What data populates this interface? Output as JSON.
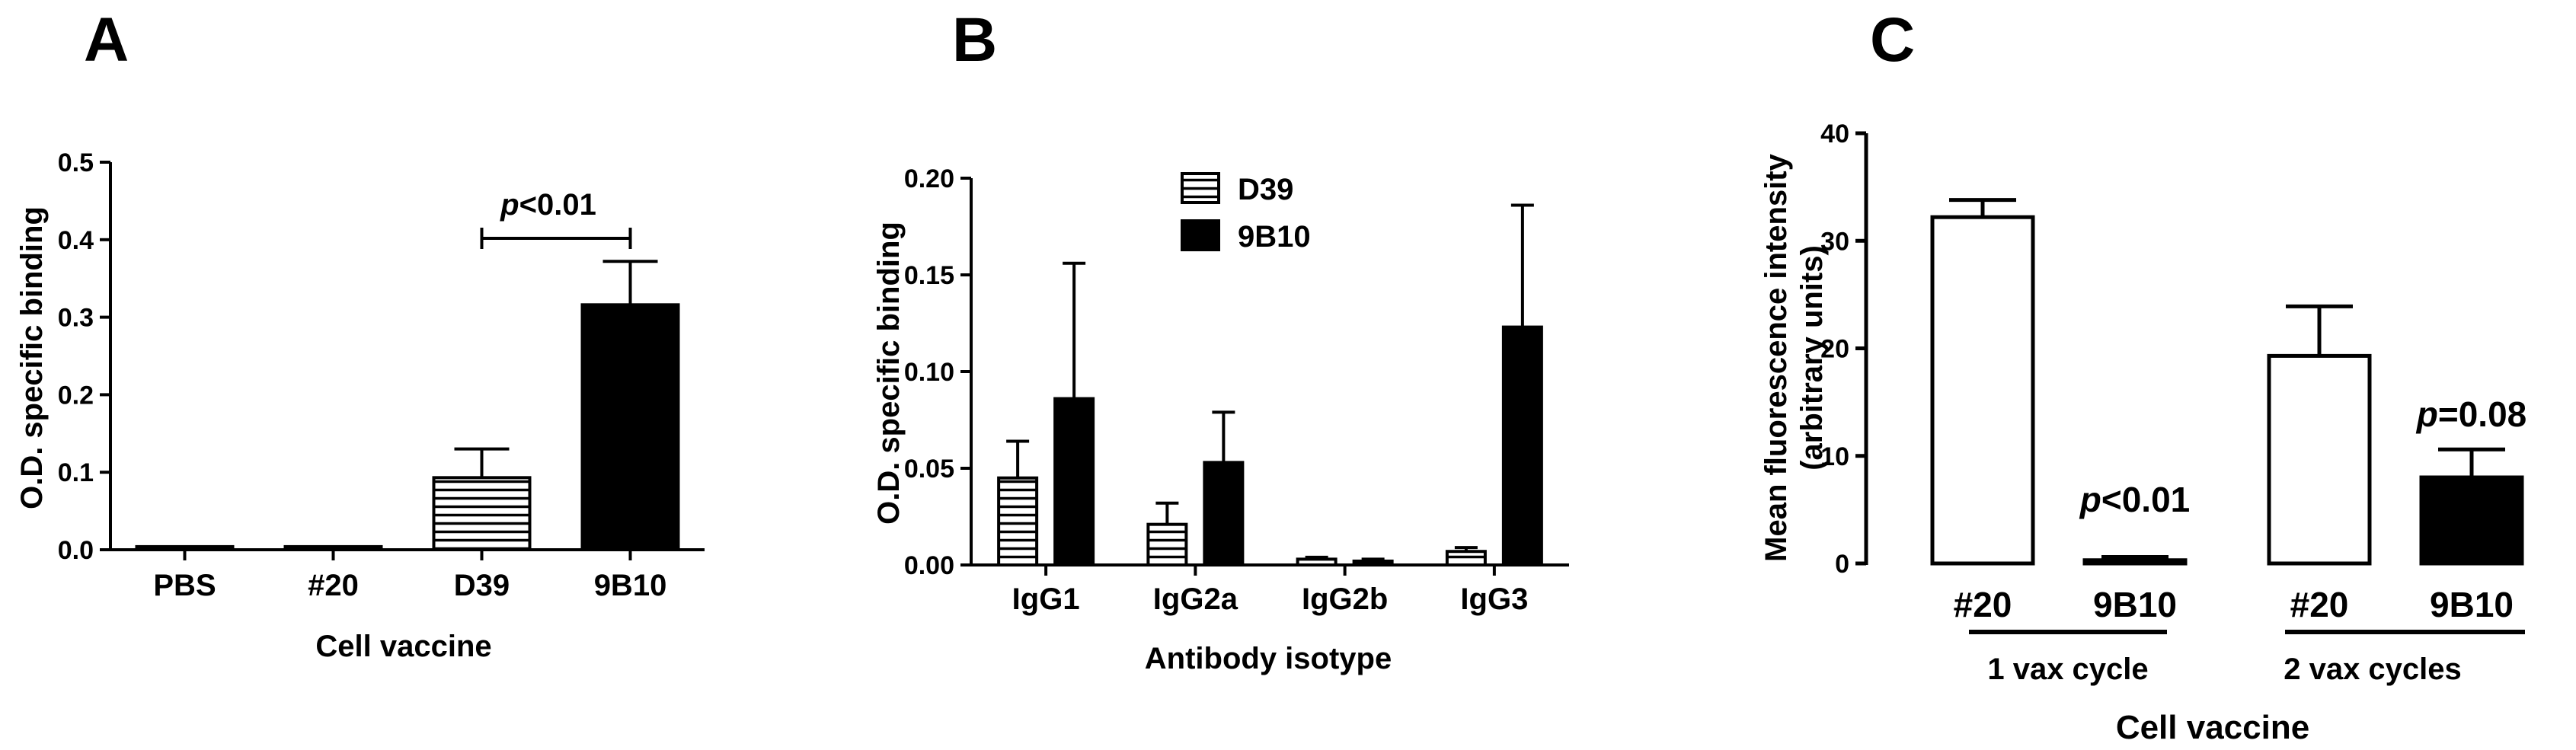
{
  "colors": {
    "ink": "#000000",
    "hatch_fill": "#ffffff",
    "solid_fill": "#000000"
  },
  "chart_data": [
    {
      "panel": "A",
      "type": "bar",
      "categories": [
        "PBS",
        "#20",
        "D39",
        "9B10"
      ],
      "values": [
        0.004,
        0.004,
        0.093,
        0.316
      ],
      "errors": [
        0.0,
        0.0,
        0.037,
        0.056
      ],
      "patterns": [
        "solid",
        "solid",
        "hatch",
        "solid"
      ],
      "ylabel": "O.D. specific binding",
      "xlabel": "Cell vaccine",
      "ylim": [
        0,
        0.5
      ],
      "yticks": [
        "0.0",
        "0.1",
        "0.2",
        "0.3",
        "0.4",
        "0.5"
      ],
      "annotation": {
        "p_prefix": "p",
        "p_rest": "<0.01",
        "between": [
          "D39",
          "9B10"
        ]
      }
    },
    {
      "panel": "B",
      "type": "bar",
      "categories": [
        "IgG1",
        "IgG2a",
        "IgG2b",
        "IgG3"
      ],
      "series": [
        {
          "name": "D39",
          "pattern": "hatch",
          "values": [
            0.045,
            0.021,
            0.003,
            0.007
          ],
          "errors": [
            0.019,
            0.011,
            0.001,
            0.002
          ]
        },
        {
          "name": "9B10",
          "pattern": "solid",
          "values": [
            0.086,
            0.053,
            0.002,
            0.123
          ],
          "errors": [
            0.07,
            0.026,
            0.001,
            0.063
          ]
        }
      ],
      "ylabel": "O.D. specific binding",
      "xlabel": "Antibody isotype",
      "ylim": [
        0,
        0.2
      ],
      "yticks": [
        "0.00",
        "0.05",
        "0.10",
        "0.15",
        "0.20"
      ],
      "legend": "top-center"
    },
    {
      "panel": "C",
      "type": "bar",
      "categories": [
        "#20",
        "9B10",
        "#20",
        "9B10"
      ],
      "values": [
        32.2,
        0.3,
        19.3,
        8.0
      ],
      "errors": [
        1.6,
        0.3,
        4.6,
        2.6
      ],
      "patterns": [
        "open",
        "solid",
        "open",
        "solid"
      ],
      "groups": [
        "1 vax cycle",
        "2 vax cycles"
      ],
      "ylabel_line1": "Mean fluorescence intensity",
      "ylabel_line2": "(arbitrary units)",
      "xlabel": "Cell vaccine",
      "ylim": [
        0,
        40
      ],
      "yticks": [
        "0",
        "10",
        "20",
        "30",
        "40"
      ],
      "annotations": [
        {
          "bar": 1,
          "p_prefix": "p",
          "p_rest": "<0.01"
        },
        {
          "bar": 3,
          "p_prefix": "p",
          "p_rest": "=0.08"
        }
      ]
    }
  ]
}
